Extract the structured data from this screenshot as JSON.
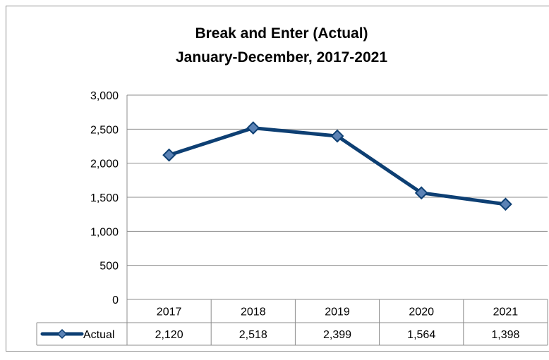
{
  "chart_data": {
    "type": "line",
    "title": "Break and Enter (Actual)",
    "subtitle": "January-December, 2017-2021",
    "categories": [
      "2017",
      "2018",
      "2019",
      "2020",
      "2021"
    ],
    "series": [
      {
        "name": "Actual",
        "values": [
          2120,
          2518,
          2399,
          1564,
          1398
        ],
        "value_labels": [
          "2,120",
          "2,518",
          "2,399",
          "1,564",
          "1,398"
        ],
        "color": "#0d3f73",
        "marker": "diamond"
      }
    ],
    "y_ticks": [
      "0",
      "500",
      "1,000",
      "1,500",
      "2,000",
      "2,500",
      "3,000"
    ],
    "ylim": [
      0,
      3000
    ],
    "grid": true,
    "legend": "data-table-bottom",
    "xlabel": "",
    "ylabel": ""
  }
}
